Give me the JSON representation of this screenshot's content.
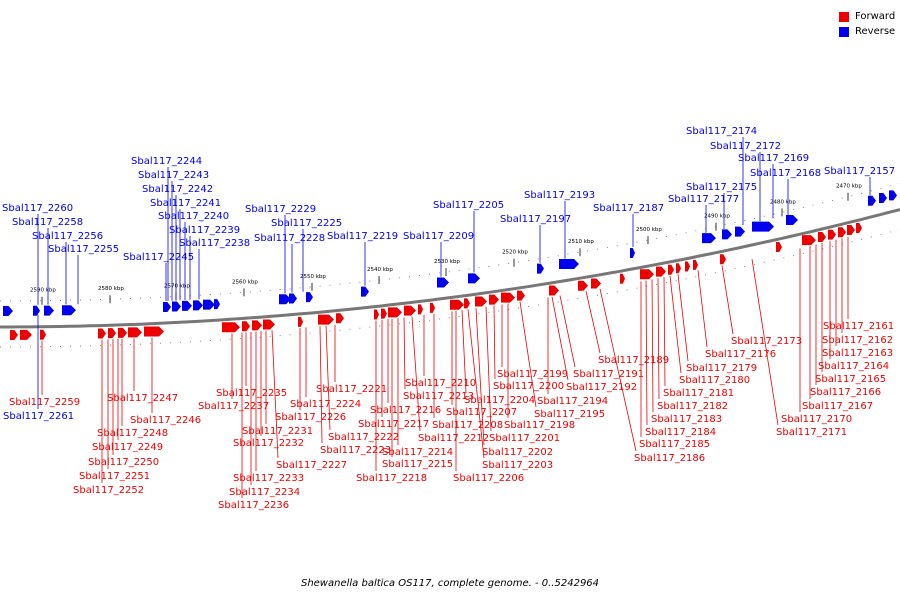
{
  "caption": "Shewanella baltica OS117, complete genome. - 0..5242964",
  "legend": [
    {
      "label": "Forward",
      "color": "#ee0000"
    },
    {
      "label": "Reverse",
      "color": "#0000ee"
    }
  ],
  "colors": {
    "forward": "#ee0000",
    "reverse": "#0000ee",
    "axis": "#777777",
    "tick": "#333333"
  },
  "scale_ticks": [
    "2590 kbp",
    "2580 kbp",
    "2570 kbp",
    "2560 kbp",
    "2550 kbp",
    "2540 kbp",
    "2530 kbp",
    "2520 kbp",
    "2510 kbp",
    "2500 kbp",
    "2490 kbp",
    "2480 kbp",
    "2470 kbp"
  ],
  "reverse_genes": [
    "Sbal117_2261",
    "Sbal117_2260",
    "Sbal117_2258",
    "Sbal117_2256",
    "Sbal117_2255",
    "Sbal117_2245",
    "Sbal117_2244",
    "Sbal117_2243",
    "Sbal117_2242",
    "Sbal117_2241",
    "Sbal117_2240",
    "Sbal117_2239",
    "Sbal117_2238",
    "Sbal117_2229",
    "Sbal117_2228",
    "Sbal117_2225",
    "Sbal117_2219",
    "Sbal117_2209",
    "Sbal117_2205",
    "Sbal117_2197",
    "Sbal117_2193",
    "Sbal117_2187",
    "Sbal117_2177",
    "Sbal117_2175",
    "Sbal117_2174",
    "Sbal117_2172",
    "Sbal117_2169",
    "Sbal117_2168",
    "Sbal117_2157"
  ],
  "forward_genes": [
    "Sbal117_2259",
    "Sbal117_2252",
    "Sbal117_2251",
    "Sbal117_2250",
    "Sbal117_2249",
    "Sbal117_2248",
    "Sbal117_2247",
    "Sbal117_2246",
    "Sbal117_2237",
    "Sbal117_2236",
    "Sbal117_2235",
    "Sbal117_2234",
    "Sbal117_2233",
    "Sbal117_2232",
    "Sbal117_2231",
    "Sbal117_2227",
    "Sbal117_2226",
    "Sbal117_2224",
    "Sbal117_2223",
    "Sbal117_2222",
    "Sbal117_2221",
    "Sbal117_2218",
    "Sbal117_2217",
    "Sbal117_2216",
    "Sbal117_2215",
    "Sbal117_2214",
    "Sbal117_2213",
    "Sbal117_2212",
    "Sbal117_2210",
    "Sbal117_2208",
    "Sbal117_2207",
    "Sbal117_2206",
    "Sbal117_2204",
    "Sbal117_2203",
    "Sbal117_2202",
    "Sbal117_2201",
    "Sbal117_2200",
    "Sbal117_2199",
    "Sbal117_2198",
    "Sbal117_2195",
    "Sbal117_2194",
    "Sbal117_2192",
    "Sbal117_2191",
    "Sbal117_2189",
    "Sbal117_2186",
    "Sbal117_2185",
    "Sbal117_2184",
    "Sbal117_2183",
    "Sbal117_2182",
    "Sbal117_2181",
    "Sbal117_2180",
    "Sbal117_2179",
    "Sbal117_2176",
    "Sbal117_2173",
    "Sbal117_2171",
    "Sbal117_2170",
    "Sbal117_2167",
    "Sbal117_2166",
    "Sbal117_2165",
    "Sbal117_2164",
    "Sbal117_2163",
    "Sbal117_2162",
    "Sbal117_2161"
  ]
}
